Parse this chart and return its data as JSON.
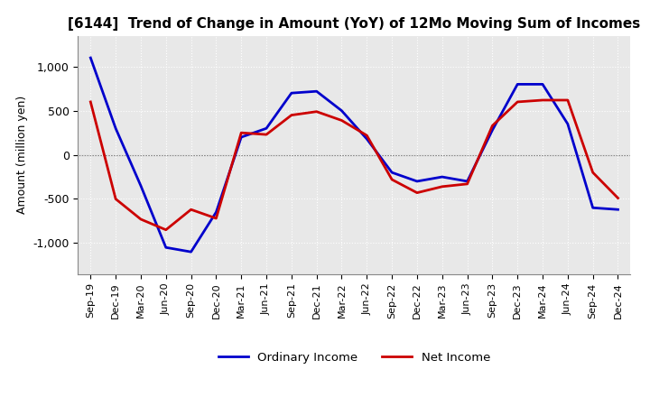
{
  "title": "[6144]  Trend of Change in Amount (YoY) of 12Mo Moving Sum of Incomes",
  "ylabel": "Amount (million yen)",
  "ylim": [
    -1350,
    1350
  ],
  "yticks": [
    -1000,
    -500,
    0,
    500,
    1000
  ],
  "legend_labels": [
    "Ordinary Income",
    "Net Income"
  ],
  "line_colors": [
    "#0000cc",
    "#cc0000"
  ],
  "bg_color": "#e8e8e8",
  "x_labels": [
    "Sep-19",
    "Dec-19",
    "Mar-20",
    "Jun-20",
    "Sep-20",
    "Dec-20",
    "Mar-21",
    "Jun-21",
    "Sep-21",
    "Dec-21",
    "Mar-22",
    "Jun-22",
    "Sep-22",
    "Dec-22",
    "Mar-23",
    "Jun-23",
    "Sep-23",
    "Dec-23",
    "Mar-24",
    "Jun-24",
    "Sep-24",
    "Dec-24"
  ],
  "ordinary_income": [
    1100,
    300,
    -350,
    -1050,
    -1100,
    -650,
    200,
    300,
    700,
    720,
    500,
    180,
    -200,
    -300,
    -250,
    -300,
    280,
    800,
    800,
    350,
    -600,
    -620
  ],
  "net_income": [
    600,
    -500,
    -730,
    -850,
    -620,
    -720,
    250,
    230,
    450,
    490,
    390,
    220,
    -280,
    -430,
    -360,
    -330,
    330,
    600,
    620,
    620,
    -200,
    -490
  ]
}
